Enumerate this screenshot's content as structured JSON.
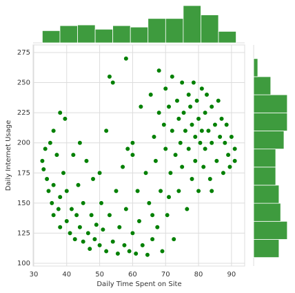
{
  "chart_data": [
    {
      "type": "scatter",
      "xlabel": "Daily Time Spent on Site",
      "ylabel": "Daily Internet Usage",
      "color": "#008000",
      "grid": true,
      "xlim": [
        29.8,
        94
      ],
      "ylim": [
        97.7,
        281.3
      ],
      "xticks": [
        30,
        40,
        50,
        60,
        70,
        80,
        90
      ],
      "yticks": [
        100,
        125,
        150,
        175,
        200,
        225,
        250,
        275
      ],
      "x": [
        32.6,
        33,
        33.5,
        34,
        34.5,
        35,
        35.5,
        36,
        36,
        37,
        37.5,
        38,
        38,
        39,
        39.5,
        40,
        40,
        41,
        41.5,
        42,
        42.5,
        43,
        43.5,
        44,
        45,
        45,
        46,
        46.5,
        47,
        47.5,
        48,
        48.5,
        49,
        50,
        50.5,
        51,
        52,
        52,
        53,
        53,
        54,
        55,
        55.5,
        56,
        57,
        57.5,
        58,
        58.5,
        59,
        60,
        60,
        61,
        61.5,
        62,
        62.5,
        63,
        64,
        64.5,
        65,
        65.5,
        66,
        66.5,
        67,
        67.5,
        68,
        68,
        68.5,
        69,
        69.5,
        70,
        70,
        70.5,
        71,
        71.5,
        72,
        72,
        72.5,
        73,
        73.5,
        74,
        74,
        74.5,
        75,
        75,
        75.5,
        76,
        76.5,
        77,
        77,
        77.5,
        78,
        78,
        78.5,
        79,
        79,
        79.5,
        80,
        80,
        80.5,
        81,
        81,
        81.5,
        82,
        82,
        82.5,
        83,
        83.5,
        84,
        84,
        85,
        85.5,
        86,
        86.5,
        87,
        87.5,
        88,
        88.5,
        89,
        89.5,
        90,
        91,
        91,
        58,
        54,
        50,
        36,
        38,
        44,
        60,
        66,
        71,
        84
      ],
      "y": [
        185,
        178,
        195,
        170,
        160,
        200,
        150,
        165,
        140,
        190,
        145,
        130,
        155,
        175,
        220,
        135,
        160,
        125,
        145,
        190,
        120,
        140,
        165,
        130,
        118,
        150,
        185,
        125,
        112,
        140,
        170,
        120,
        132,
        115,
        150,
        128,
        210,
        110,
        255,
        140,
        118,
        160,
        108,
        130,
        180,
        115,
        145,
        195,
        110,
        125,
        200,
        108,
        160,
        135,
        230,
        115,
        175,
        107,
        150,
        240,
        120,
        205,
        185,
        130,
        260,
        225,
        160,
        110,
        215,
        245,
        195,
        140,
        230,
        175,
        255,
        210,
        120,
        190,
        235,
        220,
        160,
        200,
        250,
        180,
        225,
        210,
        145,
        240,
        195,
        230,
        215,
        170,
        250,
        205,
        185,
        235,
        220,
        160,
        200,
        245,
        210,
        180,
        225,
        195,
        240,
        210,
        170,
        230,
        200,
        215,
        185,
        235,
        205,
        220,
        175,
        200,
        215,
        190,
        180,
        205,
        185,
        195,
        270,
        250,
        175,
        210,
        225,
        200,
        190,
        140,
        155,
        160
      ]
    },
    {
      "type": "histogram",
      "color": "#3e9b3e",
      "ylim": [
        0,
        165
      ],
      "bins": [
        32.6,
        37.95,
        43.29,
        48.64,
        53.98,
        59.33,
        64.67,
        70.02,
        75.36,
        80.71,
        86.05,
        91.4
      ],
      "values": [
        51,
        72,
        75,
        57,
        72,
        66,
        102,
        102,
        156,
        117,
        48
      ]
    },
    {
      "type": "histogram-horizontal",
      "color": "#3e9b3e",
      "xlim": [
        0,
        130
      ],
      "bins": [
        104.8,
        119.81,
        134.82,
        149.84,
        164.85,
        179.86,
        194.87,
        209.88,
        224.9,
        239.91,
        254.92,
        269.93
      ],
      "values": [
        92,
        122,
        98,
        92,
        80,
        80,
        110,
        122,
        122,
        62,
        15
      ]
    }
  ]
}
